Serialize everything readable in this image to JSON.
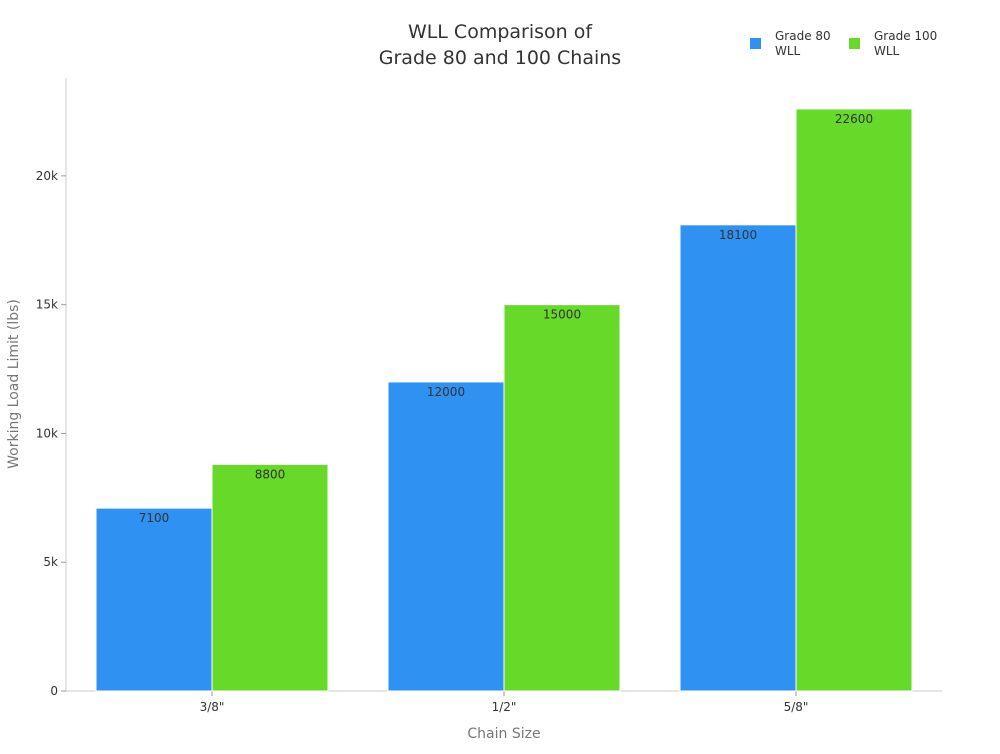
{
  "chart_data": {
    "type": "bar",
    "title_lines": [
      "WLL Comparison of",
      "Grade 80 and 100 Chains"
    ],
    "xlabel": "Chain Size",
    "ylabel": "Working Load Limit (lbs)",
    "categories": [
      "3/8\"",
      "1/2\"",
      "5/8\""
    ],
    "series": [
      {
        "name_lines": [
          "Grade 80",
          "WLL"
        ],
        "color": "#2f92f3",
        "values": [
          7100,
          12000,
          18100
        ],
        "labels": [
          "7100",
          "12000",
          "18100"
        ]
      },
      {
        "name_lines": [
          "Grade 100",
          "WLL"
        ],
        "color": "#66d929",
        "values": [
          8800,
          15000,
          22600
        ],
        "labels": [
          "8800",
          "15000",
          "22600"
        ]
      }
    ],
    "y_ticks": [
      0,
      5000,
      10000,
      15000,
      20000
    ],
    "y_tick_labels": [
      "0",
      "5k",
      "10k",
      "15k",
      "20k"
    ],
    "ylim": [
      0,
      23800
    ],
    "grid": false,
    "legend_position": "top-right"
  }
}
